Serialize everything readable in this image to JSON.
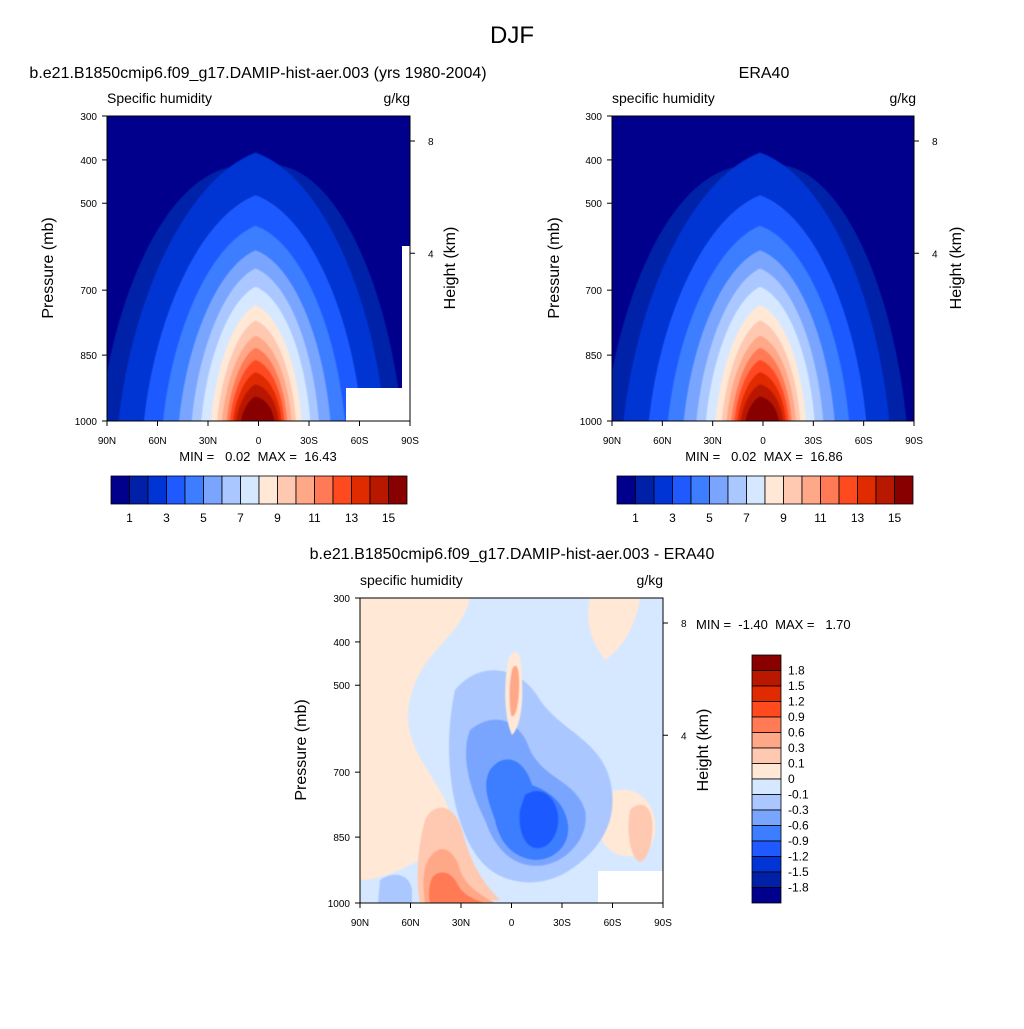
{
  "figure_title": "DJF",
  "colors": {
    "seq": [
      "#00008c",
      "#0020a8",
      "#0034d4",
      "#1e5aff",
      "#3d7dff",
      "#7aa5ff",
      "#aac8ff",
      "#d6e8ff",
      "#ffe8d6",
      "#ffc8b0",
      "#ffa888",
      "#ff7a55",
      "#ff4a20",
      "#e02a00",
      "#b81800",
      "#880000"
    ],
    "diff": [
      "#00008c",
      "#0020a8",
      "#0034d4",
      "#1e5aff",
      "#3d7dff",
      "#7aa5ff",
      "#aac8ff",
      "#d6e8ff",
      "#ffe8d6",
      "#ffc8b0",
      "#ffa888",
      "#ff7a55",
      "#ff4a20",
      "#e02a00",
      "#b81800",
      "#880000"
    ]
  },
  "chart_data": [
    {
      "type": "contour",
      "title": "b.e21.B1850cmip6.f09_g17.DAMIP-hist-aer.003 (yrs 1980-2004)",
      "left_label": "Specific humidity",
      "units": "g/kg",
      "ylabel": "Pressure (mb)",
      "y2label": "Height (km)",
      "x_ticks": [
        "90N",
        "60N",
        "30N",
        "0",
        "30S",
        "60S",
        "90S"
      ],
      "y_ticks": [
        "300",
        "400",
        "500",
        "700",
        "850",
        "1000"
      ],
      "y2_ticks": [
        "8",
        "4"
      ],
      "min": 0.02,
      "max": 16.43,
      "stats": "MIN =   0.02  MAX =  16.43",
      "colorbar_labels": [
        "1",
        "3",
        "5",
        "7",
        "9",
        "11",
        "13",
        "15"
      ]
    },
    {
      "type": "contour",
      "title": "ERA40",
      "left_label": "specific humidity",
      "units": "g/kg",
      "ylabel": "Pressure (mb)",
      "y2label": "Height (km)",
      "x_ticks": [
        "90N",
        "60N",
        "30N",
        "0",
        "30S",
        "60S",
        "90S"
      ],
      "y_ticks": [
        "300",
        "400",
        "500",
        "700",
        "850",
        "1000"
      ],
      "y2_ticks": [
        "8",
        "4"
      ],
      "min": 0.02,
      "max": 16.86,
      "stats": "MIN =   0.02  MAX =  16.86",
      "colorbar_labels": [
        "1",
        "3",
        "5",
        "7",
        "9",
        "11",
        "13",
        "15"
      ]
    },
    {
      "type": "contour",
      "title": "b.e21.B1850cmip6.f09_g17.DAMIP-hist-aer.003 - ERA40",
      "left_label": "specific humidity",
      "units": "g/kg",
      "ylabel": "Pressure (mb)",
      "y2label": "Height (km)",
      "x_ticks": [
        "90N",
        "60N",
        "30N",
        "0",
        "30S",
        "60S",
        "90S"
      ],
      "y_ticks": [
        "300",
        "400",
        "500",
        "700",
        "850",
        "1000"
      ],
      "y2_ticks": [
        "8",
        "4"
      ],
      "min": -1.4,
      "max": 1.7,
      "stats": "MIN =  -1.40  MAX =   1.70",
      "colorbar_labels": [
        "1.8",
        "1.5",
        "1.2",
        "0.9",
        "0.6",
        "0.3",
        "0.1",
        "0",
        "-0.1",
        "-0.3",
        "-0.6",
        "-0.9",
        "-1.2",
        "-1.5",
        "-1.8"
      ]
    }
  ]
}
